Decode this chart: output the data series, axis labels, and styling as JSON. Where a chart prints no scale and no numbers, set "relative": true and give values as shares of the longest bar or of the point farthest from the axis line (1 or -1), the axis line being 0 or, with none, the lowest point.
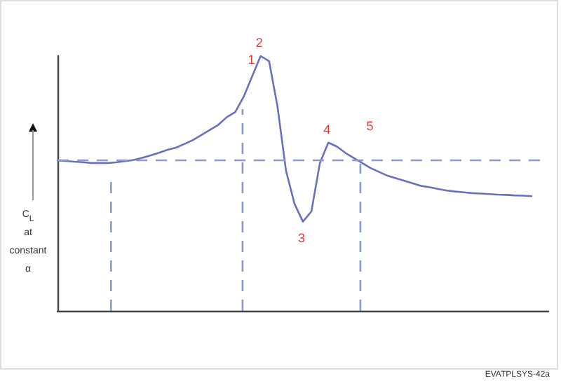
{
  "chart_data": {
    "type": "line",
    "relative": true,
    "ylabel": "C$_{L}$ at constant α",
    "categories": [
      null,
      null,
      null,
      null,
      null,
      null,
      null,
      null,
      null,
      null,
      null,
      null,
      null,
      null,
      null,
      null,
      null,
      null,
      null,
      null,
      null,
      null,
      null,
      null,
      null,
      null,
      null,
      null,
      null,
      null,
      null,
      null,
      null,
      null,
      null,
      null,
      null,
      null,
      null,
      null,
      null,
      null,
      null,
      null,
      null,
      null,
      null,
      null,
      null,
      null,
      null,
      null,
      null,
      null,
      null,
      null,
      null,
      null,
      null
    ],
    "series": [
      {
        "color": "#6a6fc0",
        "values": [
          0.59,
          0.588,
          0.585,
          0.583,
          0.58,
          0.58,
          0.58,
          0.583,
          0.587,
          0.592,
          0.6,
          0.61,
          0.62,
          0.632,
          0.64,
          0.655,
          0.67,
          0.69,
          0.71,
          0.73,
          0.76,
          0.78,
          0.84,
          0.92,
          1,
          0.98,
          0.8,
          0.55,
          0.42,
          0.35,
          0.39,
          0.58,
          0.66,
          0.645,
          0.62,
          0.6,
          0.58,
          0.56,
          0.545,
          0.53,
          0.52,
          0.51,
          0.5,
          0.49,
          0.485,
          0.478,
          0.472,
          0.468,
          0.465,
          0.462,
          0.46,
          0.458,
          0.456,
          0.455,
          0.453,
          0.452,
          0.45,
          null,
          null
        ]
      }
    ],
    "marker": "none",
    "line_style": "solid",
    "ref_lines": [
      {
        "axis": "y",
        "value": 0.59,
        "color": "#8a9cc8",
        "line_style": "dashed"
      }
    ],
    "annotations": [
      {
        "text": "1",
        "y": 0.84
      },
      {
        "text": "2",
        "y": 1
      },
      {
        "text": "3",
        "y": 0.35
      },
      {
        "text": "4",
        "y": 0.66
      },
      {
        "text": "5",
        "y": 0.58
      },
      "EVATPLSYS-42a"
    ]
  }
}
